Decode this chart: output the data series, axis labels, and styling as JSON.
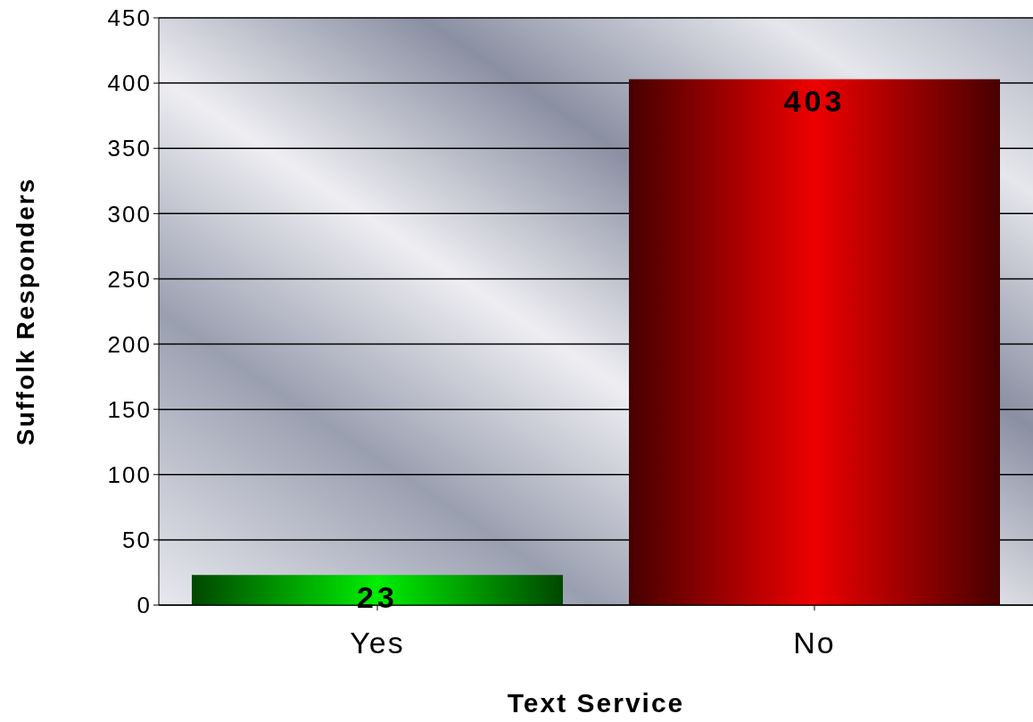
{
  "chart_data": {
    "type": "bar",
    "xlabel": "Text Service",
    "ylabel": "Suffolk Responders",
    "categories": [
      "Yes",
      "No"
    ],
    "values": [
      23,
      403
    ],
    "colors": [
      "#00ee00",
      "#ee0000"
    ],
    "ylim": [
      0,
      450
    ],
    "yticks": [
      0,
      50,
      100,
      150,
      200,
      250,
      300,
      350,
      400,
      450
    ],
    "grid": "y",
    "data_labels": true
  }
}
